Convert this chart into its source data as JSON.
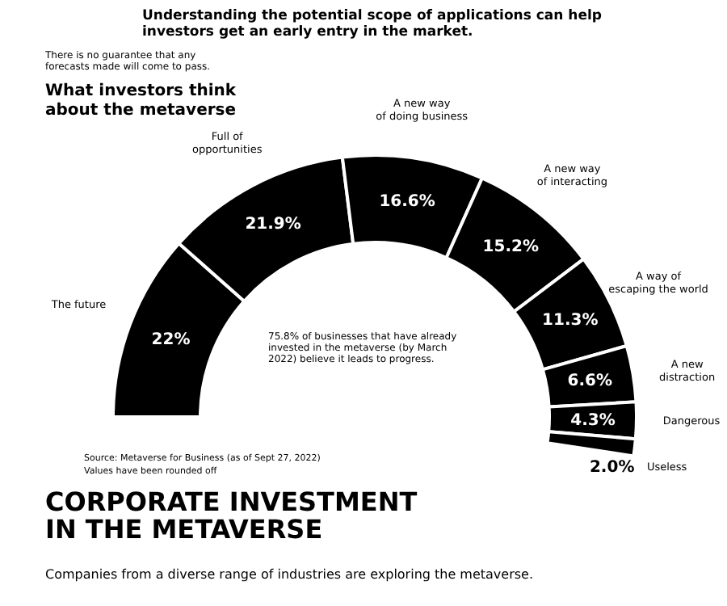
{
  "chart_data": {
    "type": "donut",
    "title": "What investors think about the metaverse",
    "categories": [
      "The future",
      "Full of opportunities",
      "A new way of doing business",
      "A new way of interacting",
      "A way of escaping the world",
      "A new distraction",
      "Dangerous",
      "Useless"
    ],
    "values": [
      22,
      21.9,
      16.6,
      15.2,
      11.3,
      6.6,
      4.3,
      2.0
    ],
    "colors": [
      "#000000",
      "#000000",
      "#000000",
      "#000000",
      "#000000",
      "#000000",
      "#000000",
      "#000000"
    ],
    "value_labels": [
      "22%",
      "21.9%",
      "16.6%",
      "15.2%",
      "11.3%",
      "6.6%",
      "4.3%",
      "2.0%"
    ],
    "annotations": [
      "Understanding the potential scope of applications can help investors get an early entry in the market.",
      "There is no guarantee that any forecasts made will come to pass.",
      "75.8% of businesses that have already invested in the metaverse (by March 2022) believe it leads to progress.",
      "Source: Metaverse for Business (as of Sept 27, 2022)",
      "Values have been rounded off",
      "CORPORATE INVESTMENT IN THE METAVERSE",
      "Companies from a diverse range of industries are exploring the metaverse."
    ]
  }
}
